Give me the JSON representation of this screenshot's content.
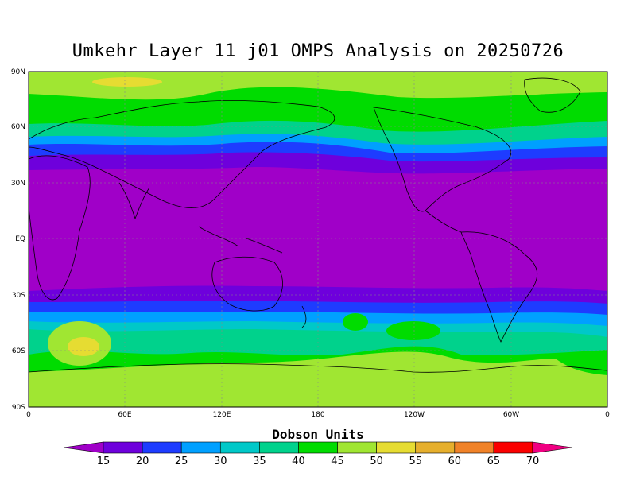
{
  "title": "Umkehr Layer 11 j01 OMPS Analysis on 20250726",
  "map": {
    "projection": "cylindrical-equidistant",
    "lat_ticks": [
      "90N",
      "60N",
      "30N",
      "EQ",
      "30S",
      "60S",
      "90S"
    ],
    "lon_ticks": [
      "0",
      "60E",
      "120E",
      "180",
      "120W",
      "60W",
      "0"
    ],
    "grid": "dashed"
  },
  "colorbar": {
    "title": "Dobson Units",
    "levels": [
      "15",
      "20",
      "25",
      "30",
      "35",
      "40",
      "45",
      "50",
      "55",
      "60",
      "65",
      "70"
    ],
    "colors": [
      "#a000c8",
      "#6e00dc",
      "#1e3cff",
      "#00a0ff",
      "#00c8c8",
      "#00d28c",
      "#00dc00",
      "#a0e632",
      "#e6dc32",
      "#e6af2d",
      "#f08228",
      "#fa0000",
      "#f00082"
    ]
  },
  "chart_data": {
    "type": "heatmap",
    "title": "Umkehr Layer 11 j01 OMPS Analysis on 20250726",
    "units": "Dobson Units",
    "description_of_field_bands_du": [
      {
        "lat_range": [
          "90N",
          "75N"
        ],
        "value": 50
      },
      {
        "lat_range": [
          "75N",
          "62N"
        ],
        "value": 45
      },
      {
        "lat_range": [
          "62N",
          "53N"
        ],
        "value": 40
      },
      {
        "lat_range": [
          "53N",
          "47N"
        ],
        "value": 35
      },
      {
        "lat_range": [
          "47N",
          "43N"
        ],
        "value": 30
      },
      {
        "lat_range": [
          "43N",
          "38N"
        ],
        "value": 25
      },
      {
        "lat_range": [
          "38N",
          "30S"
        ],
        "value": 15
      },
      {
        "lat_range": [
          "30S",
          "35S"
        ],
        "value": 20
      },
      {
        "lat_range": [
          "35S",
          "40S"
        ],
        "value": 25
      },
      {
        "lat_range": [
          "40S",
          "45S"
        ],
        "value": 30
      },
      {
        "lat_range": [
          "45S",
          "50S"
        ],
        "value": 35
      },
      {
        "lat_range": [
          "50S",
          "60S"
        ],
        "value": 45
      },
      {
        "lat_range": [
          "60S",
          "90S"
        ],
        "value": 50
      }
    ],
    "local_maxima_du": [
      {
        "location": "near 40E 60S",
        "value": 55
      },
      {
        "location": "near 50E 85N",
        "value": 55
      }
    ]
  }
}
